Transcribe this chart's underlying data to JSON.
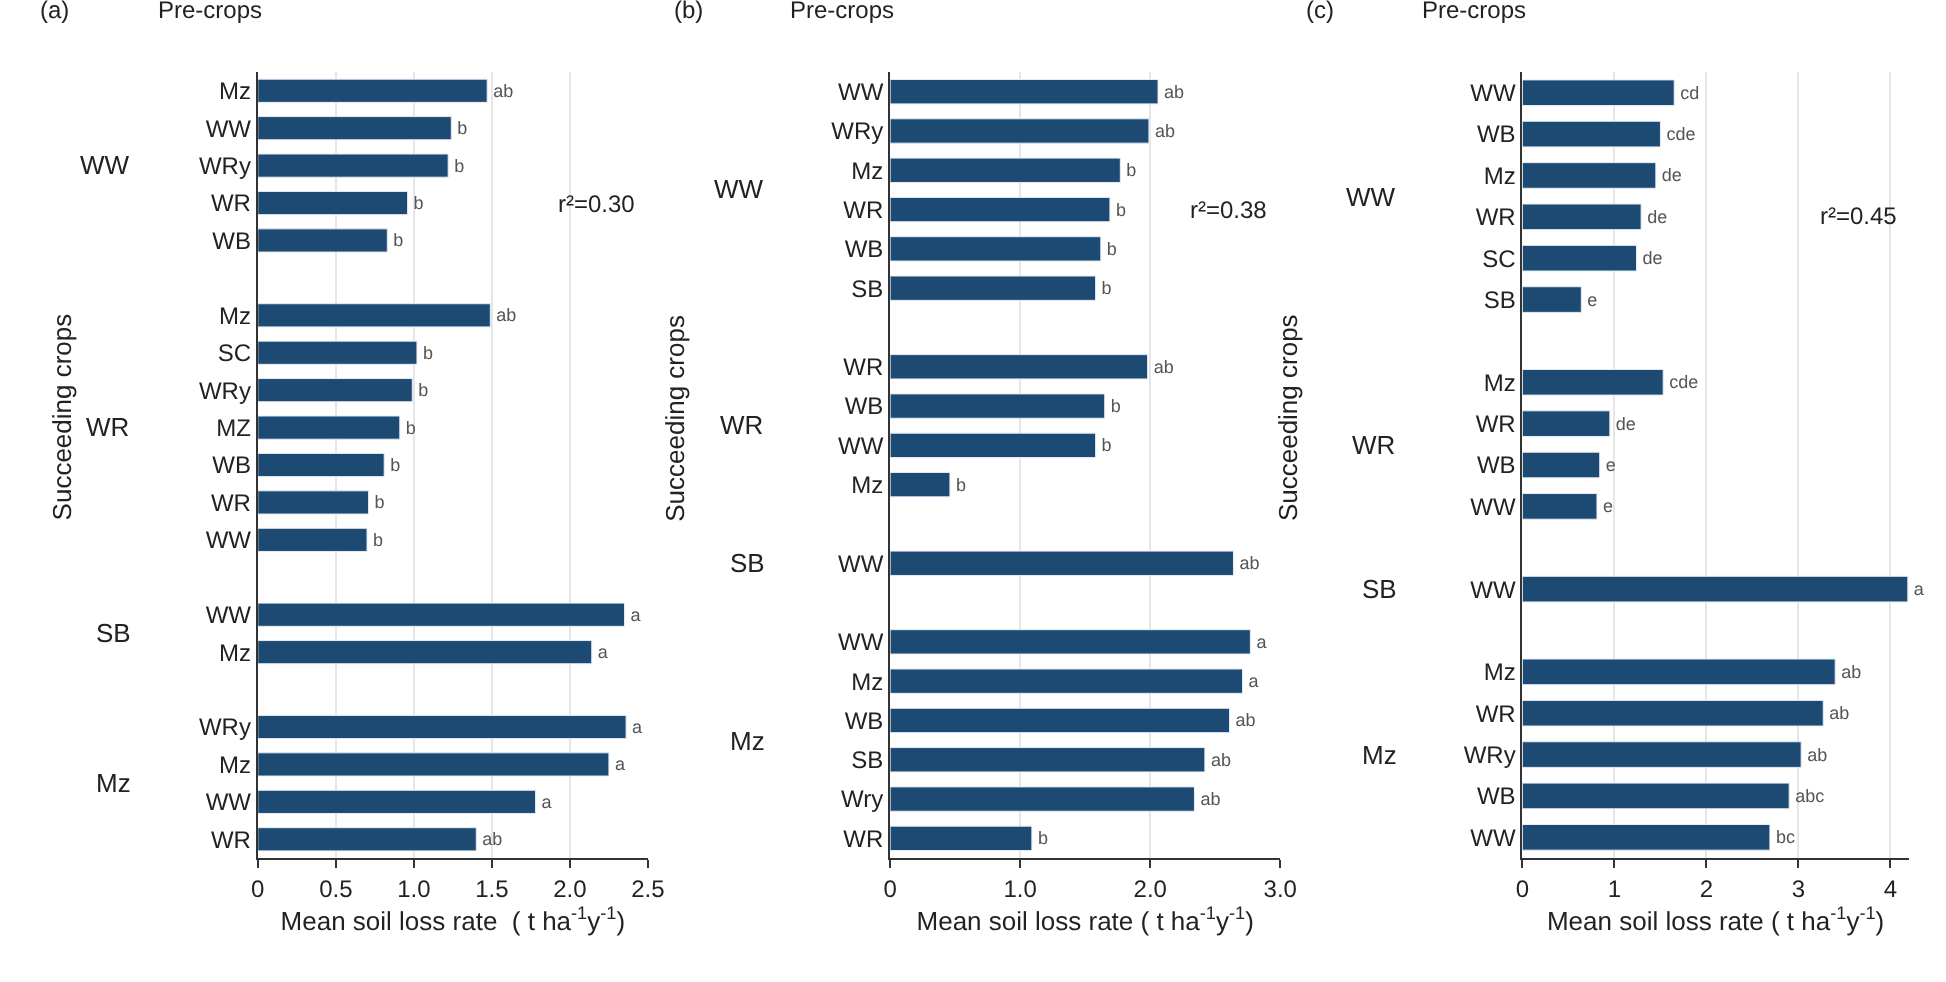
{
  "chart_data": [
    {
      "type": "bar",
      "orientation": "horizontal",
      "title": "(a)",
      "ylabel": "Succeeding crops",
      "xlabel": "Mean soil loss rate  ( t ha$^{-1}$y$^{-1}$)",
      "annotations": [
        "Pre-crops",
        "r²=0.30",
        "WW",
        "WR",
        "SB",
        "Mz"
      ],
      "categories": [
        "Mz",
        "WW",
        "WRy",
        "WR",
        "WB",
        null,
        "Mz",
        "SC",
        "WRy",
        "MZ",
        "WB",
        "WR",
        "WW",
        null,
        "WW",
        "Mz",
        null,
        "WRy",
        "Mz",
        "WW",
        "WR"
      ],
      "values": [
        1.47,
        1.24,
        1.22,
        0.96,
        0.83,
        null,
        1.49,
        1.02,
        0.99,
        0.91,
        0.81,
        0.71,
        0.7,
        null,
        2.35,
        2.14,
        null,
        2.36,
        2.25,
        1.78,
        1.4
      ],
      "value_labels": [
        "ab",
        "b",
        "b",
        "b",
        "b",
        null,
        "ab",
        "b",
        "b",
        "b",
        "b",
        "b",
        "b",
        null,
        "a",
        "a",
        null,
        "a",
        "a",
        "a",
        "ab"
      ],
      "color": "#1d4a72",
      "xlim": [
        0,
        2.5
      ],
      "xticks": [
        0,
        0.5,
        {
          "value": 1,
          "label": "1.0"
        },
        1.5,
        {
          "value": 2,
          "label": "2.0"
        },
        2.5
      ],
      "grid": "x"
    },
    {
      "type": "bar",
      "orientation": "horizontal",
      "title": "(b)",
      "ylabel": "Succeeding crops",
      "xlabel": "Mean soil loss rate ( t ha$^{-1}$y$^{-1}$)",
      "annotations": [
        "Pre-crops",
        "r²=0.38",
        "WW",
        "WR",
        "SB",
        "Mz"
      ],
      "categories": [
        "WW",
        "WRy",
        "Mz",
        "WR",
        "WB",
        "SB",
        null,
        "WR",
        "WB",
        "WW",
        "Mz",
        null,
        "WW",
        null,
        "WW",
        "Mz",
        "WB",
        "SB",
        "Wry",
        "WR"
      ],
      "values": [
        2.06,
        1.99,
        1.77,
        1.69,
        1.62,
        1.58,
        null,
        1.98,
        1.65,
        1.58,
        0.46,
        null,
        2.64,
        null,
        2.77,
        2.71,
        2.61,
        2.42,
        2.34,
        1.09
      ],
      "value_labels": [
        "ab",
        "ab",
        "b",
        "b",
        "b",
        "b",
        null,
        "ab",
        "b",
        "b",
        "b",
        null,
        "ab",
        null,
        "a",
        "a",
        "ab",
        "ab",
        "ab",
        "b"
      ],
      "color": "#1d4a72",
      "xlim": [
        0,
        3
      ],
      "xticks": [
        0,
        {
          "value": 1,
          "label": "1.0"
        },
        {
          "value": 2,
          "label": "2.0"
        },
        {
          "value": 3,
          "label": "3.0"
        }
      ],
      "grid": "x"
    },
    {
      "type": "bar",
      "orientation": "horizontal",
      "title": "(c)",
      "ylabel": "Succeeding crops",
      "xlabel": "Mean soil loss rate ( t ha$^{-1}$y$^{-1}$)",
      "annotations": [
        "Pre-crops",
        "r²=0.45",
        "WW",
        "WR",
        "SB",
        "Mz"
      ],
      "categories": [
        "WW",
        "WB",
        "Mz",
        "WR",
        "SC",
        "SB",
        null,
        "Mz",
        "WR",
        "WB",
        "WW",
        null,
        "WW",
        null,
        "Mz",
        "WR",
        "WRy",
        "WB",
        "WW"
      ],
      "values": [
        1.65,
        1.5,
        1.45,
        1.29,
        1.24,
        0.64,
        null,
        1.53,
        0.95,
        0.84,
        0.81,
        null,
        4.19,
        null,
        3.4,
        3.27,
        3.03,
        2.9,
        2.69
      ],
      "value_labels": [
        "cd",
        "cde",
        "de",
        "de",
        "de",
        "e",
        null,
        "cde",
        "de",
        "e",
        "e",
        null,
        "a",
        null,
        "ab",
        "ab",
        "ab",
        "abc",
        "bc"
      ],
      "color": "#1d4a72",
      "xlim": [
        0,
        4.2
      ],
      "xticks": [
        0,
        1,
        2,
        3,
        4
      ],
      "grid": "x"
    }
  ]
}
